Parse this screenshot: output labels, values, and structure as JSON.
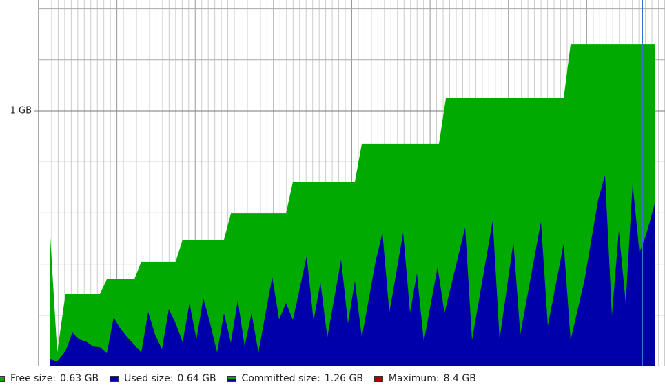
{
  "chart_data": {
    "type": "area",
    "xlim": [
      0,
      909
    ],
    "ylim": [
      0,
      1.434
    ],
    "yticks": [
      {
        "value": 1,
        "label": "1 GB"
      }
    ],
    "minor_yticks": [
      0.2,
      0.4,
      0.6,
      0.8,
      1.2,
      1.4
    ],
    "grid": true,
    "cursor_x": 876,
    "cursor_color": "#3a6fd8",
    "series": [
      {
        "key": "committed",
        "color": "#00aa00",
        "x": [
          17,
          27,
          39,
          89,
          99,
          139,
          149,
          199,
          209,
          269,
          279,
          359,
          369,
          459,
          469,
          581,
          591,
          762,
          772,
          894
        ],
        "values": [
          0.504,
          0.054,
          0.283,
          0.283,
          0.34,
          0.34,
          0.41,
          0.41,
          0.496,
          0.496,
          0.598,
          0.598,
          0.722,
          0.722,
          0.871,
          0.871,
          1.049,
          1.049,
          1.261,
          1.261
        ]
      },
      {
        "key": "used",
        "color": "#0000aa",
        "x": [
          17,
          27,
          39,
          49,
          59,
          69,
          79,
          89,
          99,
          109,
          119,
          129,
          139,
          149,
          159,
          169,
          179,
          189,
          199,
          209,
          219,
          229,
          239,
          249,
          259,
          269,
          279,
          289,
          299,
          309,
          319,
          339,
          349,
          359,
          369,
          389,
          399,
          409,
          419,
          439,
          449,
          459,
          469,
          489,
          499,
          509,
          529,
          539,
          549,
          559,
          579,
          589,
          619,
          629,
          659,
          669,
          689,
          699,
          729,
          739,
          762,
          772,
          792,
          812,
          822,
          832,
          842,
          852,
          862,
          872,
          882,
          894
        ],
        "values": [
          0.027,
          0.019,
          0.059,
          0.132,
          0.105,
          0.097,
          0.078,
          0.075,
          0.051,
          0.191,
          0.146,
          0.113,
          0.084,
          0.054,
          0.213,
          0.124,
          0.067,
          0.224,
          0.167,
          0.094,
          0.248,
          0.105,
          0.267,
          0.167,
          0.054,
          0.208,
          0.092,
          0.259,
          0.078,
          0.208,
          0.054,
          0.35,
          0.183,
          0.248,
          0.181,
          0.431,
          0.178,
          0.329,
          0.113,
          0.418,
          0.167,
          0.334,
          0.113,
          0.41,
          0.523,
          0.21,
          0.523,
          0.21,
          0.364,
          0.097,
          0.388,
          0.208,
          0.544,
          0.102,
          0.571,
          0.105,
          0.488,
          0.124,
          0.566,
          0.159,
          0.48,
          0.102,
          0.334,
          0.652,
          0.749,
          0.199,
          0.531,
          0.248,
          0.714,
          0.445,
          0.518,
          0.636
        ]
      }
    ],
    "legend": [
      {
        "name": "Free size:",
        "value": 0.63,
        "value_label": "0.63 GB",
        "colors": [
          "#00aa00"
        ]
      },
      {
        "name": "Used size:",
        "value": 0.64,
        "value_label": "0.64 GB",
        "colors": [
          "#0000aa"
        ]
      },
      {
        "name": "Committed size:",
        "value": 1.26,
        "value_label": "1.26 GB",
        "colors": [
          "#00aa00",
          "#0000aa"
        ]
      },
      {
        "name": "Maximum:",
        "value": 8.4,
        "value_label": "8.4 GB",
        "colors": [
          "#aa0000"
        ]
      }
    ]
  }
}
